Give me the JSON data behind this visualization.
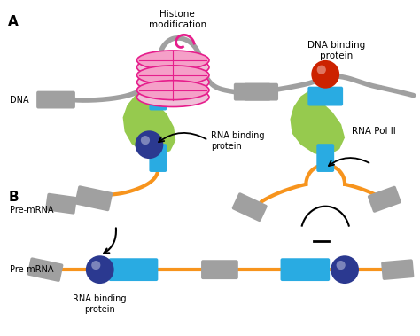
{
  "bg_color": "#ffffff",
  "label_A": "A",
  "label_B": "B",
  "label_DNA": "DNA",
  "label_premrna_A": "Pre-mRNA",
  "label_premrna_B": "Pre-mRNA",
  "label_histone": "Histone\nmodification",
  "label_dna_binding": "DNA binding\nprotein",
  "label_rna_pol": "RNA Pol II",
  "label_rna_binding_A": "RNA binding\nprotein",
  "label_rna_binding_B": "RNA binding\nprotein",
  "color_gray": "#a0a0a0",
  "color_cyan": "#29abe2",
  "color_orange": "#f7941d",
  "color_green": "#8dc63f",
  "color_navy": "#2b3990",
  "color_red": "#cc2200",
  "color_pink_dark": "#e61e8c",
  "color_pink_light": "#f5a0c8",
  "color_pink_fill": "#f0c0d8"
}
